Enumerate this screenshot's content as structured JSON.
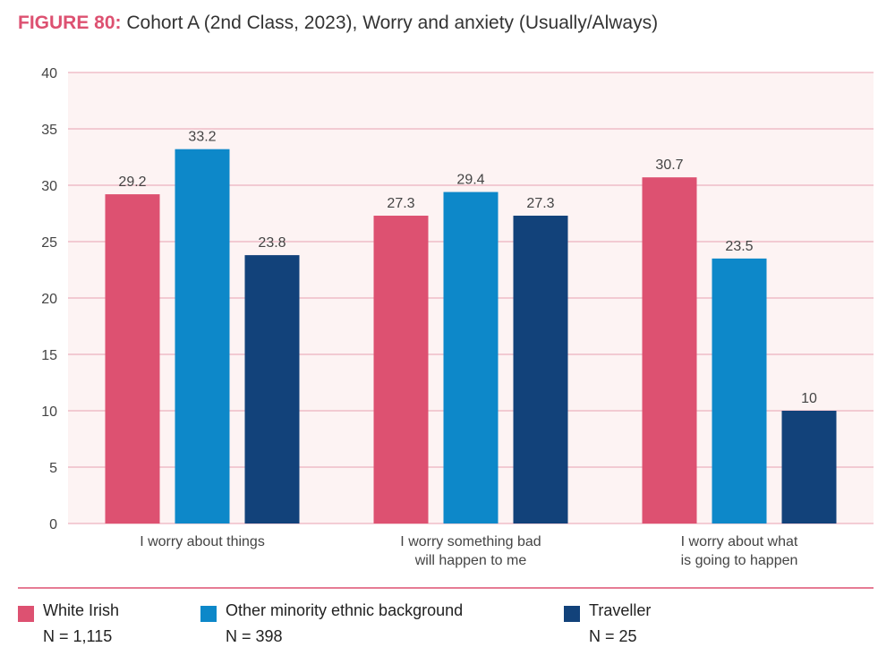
{
  "title": {
    "figure_label": "FIGURE 80:",
    "text": "Cohort A (2nd Class, 2023), Worry and anxiety (Usually/Always)"
  },
  "colors": {
    "white_irish": "#dd5171",
    "other_minority": "#0d88c9",
    "traveller": "#12427a",
    "plot_bg": "#fdf3f3",
    "grid": "#e8a2b1",
    "divider": "#dd5171"
  },
  "legend": [
    {
      "name": "White Irish",
      "n": "N = 1,115"
    },
    {
      "name": "Other minority ethnic background",
      "n": "N = 398"
    },
    {
      "name": "Traveller",
      "n": "N = 25"
    }
  ],
  "chart_data": {
    "type": "bar",
    "title": "Cohort A (2nd Class, 2023), Worry and anxiety (Usually/Always)",
    "categories": [
      [
        "I worry about things"
      ],
      [
        "I worry something bad",
        "will happen to me"
      ],
      [
        "I worry about what",
        "is going to happen"
      ]
    ],
    "series": [
      {
        "name": "White Irish",
        "values": [
          29.2,
          27.3,
          30.7
        ],
        "labels": [
          "29.2",
          "27.3",
          "30.7"
        ]
      },
      {
        "name": "Other minority ethnic background",
        "values": [
          33.2,
          29.4,
          23.5
        ],
        "labels": [
          "33.2",
          "29.4",
          "23.5"
        ]
      },
      {
        "name": "Traveller",
        "values": [
          23.8,
          27.3,
          10
        ],
        "labels": [
          "23.8",
          "27.3",
          "10"
        ]
      }
    ],
    "yticks": [
      "0",
      "5",
      "10",
      "15",
      "20",
      "25",
      "30",
      "35",
      "40"
    ],
    "ylim": [
      0,
      40
    ],
    "xlabel": "",
    "ylabel": "",
    "grid": true,
    "legend_position": "bottom"
  }
}
